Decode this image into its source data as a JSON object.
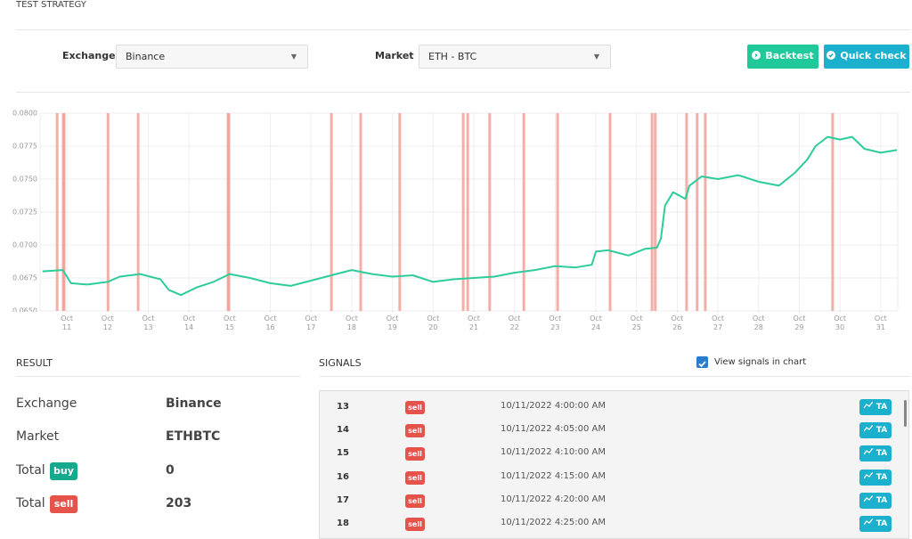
{
  "header": {
    "title": "TEST STRATEGY"
  },
  "form": {
    "exchange_label": "Exchange",
    "exchange_value": "Binance",
    "market_label": "Market",
    "market_value": "ETH - BTC",
    "buttons": [
      "Backtest",
      "Quick check"
    ]
  },
  "chart_data": {
    "type": "line",
    "x": [
      10.4,
      10.9,
      11.1,
      11.5,
      12,
      12.3,
      12.8,
      13.3,
      13.5,
      13.8,
      14.2,
      14.6,
      15,
      15.5,
      16,
      16.5,
      17,
      17.5,
      18,
      18.5,
      19,
      19.5,
      20,
      20.5,
      21,
      21.5,
      22,
      22.5,
      23,
      23.5,
      23.9,
      24,
      24.3,
      24.8,
      25.2,
      25.5,
      25.6,
      25.7,
      25.9,
      26.2,
      26.3,
      26.6,
      27,
      27.5,
      28,
      28.5,
      28.9,
      29.2,
      29.4,
      29.7,
      30,
      30.3,
      30.6,
      31,
      31.4
    ],
    "series": [
      {
        "color": "#2ecc9a",
        "values": [
          0.068,
          0.0681,
          0.0671,
          0.067,
          0.0672,
          0.0676,
          0.0678,
          0.0674,
          0.0666,
          0.0662,
          0.0668,
          0.0672,
          0.0678,
          0.0675,
          0.0671,
          0.0669,
          0.0673,
          0.0677,
          0.0681,
          0.0678,
          0.0676,
          0.0677,
          0.0672,
          0.0674,
          0.0675,
          0.0676,
          0.0679,
          0.0681,
          0.0684,
          0.0683,
          0.0685,
          0.0695,
          0.0696,
          0.0692,
          0.0697,
          0.0698,
          0.0705,
          0.073,
          0.074,
          0.0735,
          0.0745,
          0.0752,
          0.075,
          0.0753,
          0.0748,
          0.0745,
          0.0755,
          0.0765,
          0.0775,
          0.0782,
          0.078,
          0.0782,
          0.0773,
          0.077,
          0.0772
        ]
      }
    ],
    "signals": {
      "color": "#f1a197",
      "x": [
        10.76,
        10.91,
        10.93,
        12.01,
        12.75,
        14.96,
        14.98,
        17.5,
        18.22,
        19.18,
        20.74,
        20.85,
        21.39,
        22.23,
        23.06,
        24.35,
        25.38,
        25.46,
        26.23,
        26.49,
        26.69,
        29.82
      ]
    },
    "xlim": [
      10.34,
      31.42
    ],
    "xticks": [
      {
        "value": 11,
        "label": "Oct\n11"
      },
      {
        "value": 12,
        "label": "Oct\n12"
      },
      {
        "value": 13,
        "label": "Oct\n13"
      },
      {
        "value": 14,
        "label": "Oct\n14"
      },
      {
        "value": 15,
        "label": "Oct\n15"
      },
      {
        "value": 16,
        "label": "Oct\n16"
      },
      {
        "value": 17,
        "label": "Oct\n17"
      },
      {
        "value": 18,
        "label": "Oct\n18"
      },
      {
        "value": 19,
        "label": "Oct\n19"
      },
      {
        "value": 20,
        "label": "Oct\n20"
      },
      {
        "value": 21,
        "label": "Oct\n21"
      },
      {
        "value": 22,
        "label": "Oct\n22"
      },
      {
        "value": 23,
        "label": "Oct\n23"
      },
      {
        "value": 24,
        "label": "Oct\n24"
      },
      {
        "value": 25,
        "label": "Oct\n25"
      },
      {
        "value": 26,
        "label": "Oct\n26"
      },
      {
        "value": 27,
        "label": "Oct\n27"
      },
      {
        "value": 28,
        "label": "Oct\n28"
      },
      {
        "value": 29,
        "label": "Oct\n29"
      },
      {
        "value": 30,
        "label": "Oct\n30"
      },
      {
        "value": 31,
        "label": "Oct\n31"
      }
    ],
    "ylim": [
      0.065,
      0.08
    ],
    "yticks": [
      {
        "value": 0.065,
        "label": "0.0650"
      },
      {
        "value": 0.0675,
        "label": "0.0675"
      },
      {
        "value": 0.07,
        "label": "0.0700"
      },
      {
        "value": 0.0725,
        "label": "0.0725"
      },
      {
        "value": 0.075,
        "label": "0.0750"
      },
      {
        "value": 0.0775,
        "label": "0.0775"
      },
      {
        "value": 0.08,
        "label": "0.0800"
      }
    ],
    "grid": true
  },
  "result": {
    "title": "RESULT",
    "rows": [
      {
        "label": "Exchange",
        "value": "Binance"
      },
      {
        "label": "Market",
        "value": "ETHBTC"
      },
      {
        "label": "Total",
        "badge": "buy",
        "value": 0
      },
      {
        "label": "Total",
        "badge": "sell",
        "value": 203
      }
    ]
  },
  "signals": {
    "title": "SIGNALS",
    "checkbox_label": "View signals in chart",
    "rows": [
      [
        13,
        "sell",
        "10/11/2022 4:00:00 AM",
        "TA"
      ],
      [
        14,
        "sell",
        "10/11/2022 4:05:00 AM",
        "TA"
      ],
      [
        15,
        "sell",
        "10/11/2022 4:10:00 AM",
        "TA"
      ],
      [
        16,
        "sell",
        "10/11/2022 4:15:00 AM",
        "TA"
      ],
      [
        17,
        "sell",
        "10/11/2022 4:20:00 AM",
        "TA"
      ],
      [
        18,
        "sell",
        "10/11/2022 4:25:00 AM",
        "TA"
      ]
    ]
  }
}
